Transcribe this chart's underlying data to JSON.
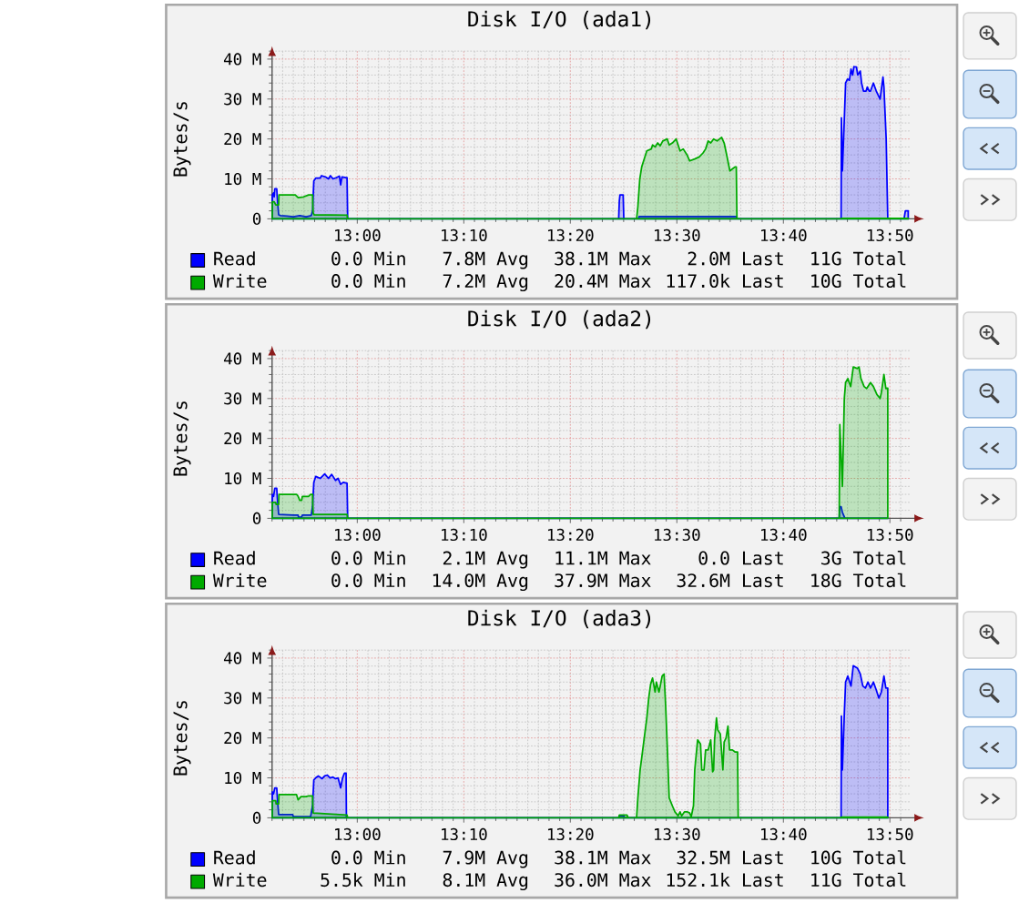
{
  "chart_data": [
    {
      "type": "area",
      "title": "Disk I/O (ada1)",
      "ylabel": "Bytes/s",
      "xlim": [
        12.8667,
        13.8667
      ],
      "ylim": [
        0,
        42000000
      ],
      "xticks": [
        {
          "value": 13,
          "label": "13:00"
        },
        {
          "value": 13.1667,
          "label": "13:10"
        },
        {
          "value": 13.3333,
          "label": "13:20"
        },
        {
          "value": 13.5,
          "label": "13:30"
        },
        {
          "value": 13.6667,
          "label": "13:40"
        },
        {
          "value": 13.8333,
          "label": "13:50"
        }
      ],
      "yticks": [
        0,
        {
          "value": 10000000,
          "label": "10 M"
        },
        {
          "value": 20000000,
          "label": "20 M"
        },
        {
          "value": 30000000,
          "label": "30 M"
        },
        {
          "value": 40000000,
          "label": "40 M"
        }
      ],
      "grid": true,
      "legend": "bottom",
      "series": [
        {
          "name": "Read",
          "color": "#0000ff",
          "x": [
            12.867,
            12.869,
            12.87,
            12.871,
            12.874,
            12.875,
            12.877,
            12.88,
            12.89,
            12.9,
            12.91,
            12.92,
            12.928,
            12.93,
            12.932,
            12.935,
            12.942,
            12.944,
            12.95,
            12.955,
            12.958,
            12.962,
            12.967,
            12.972,
            12.974,
            12.976,
            12.982,
            12.984,
            12.985,
            13.409,
            13.41,
            13.411,
            13.416,
            13.417,
            13.44,
            13.441,
            13.593,
            13.594,
            13.757,
            13.7575,
            13.759,
            13.762,
            13.764,
            13.767,
            13.77,
            13.7725,
            13.775,
            13.777,
            13.781,
            13.783,
            13.787,
            13.789,
            13.792,
            13.796,
            13.798,
            13.801,
            13.803,
            13.8075,
            13.812,
            13.818,
            13.8225,
            13.824,
            13.8275,
            13.83,
            13.8555,
            13.8575,
            13.862
          ],
          "values": [
            6000000.0,
            6500000.0,
            5500000.0,
            7500000.0,
            7500000.0,
            5000000.0,
            1000000.0,
            800000.0,
            700000.0,
            500000.0,
            800000.0,
            500000.0,
            800000.0,
            2000000.0,
            9500000.0,
            10200000.0,
            10200000.0,
            10800000.0,
            10500000.0,
            10000000.0,
            10800000.0,
            10000000.0,
            10300000.0,
            10700000.0,
            8500000.0,
            10500000.0,
            10300000.0,
            10300000.0,
            0,
            0,
            4500000.0,
            6000000.0,
            6000000.0,
            0,
            0,
            600000.0,
            600000.0,
            0,
            0,
            25300000.0,
            12000000.0,
            25000000.0,
            34000000.0,
            35000000.0,
            34700000.0,
            37500000.0,
            36000000.0,
            38100000.0,
            38000000.0,
            36000000.0,
            37000000.0,
            34000000.0,
            32000000.0,
            32000000.0,
            33000000.0,
            32000000.0,
            32000000.0,
            34000000.0,
            32000000.0,
            30000000.0,
            35500000.0,
            33000000.0,
            20000000.0,
            0,
            0,
            2000000.0,
            2000000.0
          ]
        },
        {
          "name": "Write",
          "color": "#00aa00",
          "x": [
            12.867,
            12.87,
            12.8725,
            12.877,
            12.8775,
            12.903,
            12.9075,
            12.916,
            12.924,
            12.93,
            12.931,
            12.9325,
            12.984,
            12.985,
            13.437,
            13.439,
            13.442,
            13.445,
            13.449,
            13.453,
            13.46,
            13.462,
            13.466,
            13.47,
            13.474,
            13.478,
            13.485,
            13.488,
            13.493,
            13.499,
            13.505,
            13.51,
            13.516,
            13.52,
            13.528,
            13.535,
            13.541,
            13.545,
            13.549,
            13.553,
            13.5575,
            13.563,
            13.57,
            13.574,
            13.578,
            13.583,
            13.587,
            13.591,
            13.593,
            13.594,
            13.757,
            13.7575,
            13.862
          ],
          "values": [
            4300000.0,
            4300000.0,
            3500000.0,
            3500000.0,
            6000000.0,
            6000000.0,
            5300000.0,
            5500000.0,
            6000000.0,
            6000000.0,
            1500000.0,
            1000000.0,
            900000.0,
            0,
            0,
            3000000.0,
            10000000.0,
            13000000.0,
            15000000.0,
            17000000.0,
            17500000.0,
            18500000.0,
            18000000.0,
            19000000.0,
            18300000.0,
            19500000.0,
            20000000.0,
            18500000.0,
            19000000.0,
            20000000.0,
            17000000.0,
            17500000.0,
            16000000.0,
            14500000.0,
            15000000.0,
            15500000.0,
            16500000.0,
            17500000.0,
            19500000.0,
            19000000.0,
            20000000.0,
            19500000.0,
            20400000.0,
            19000000.0,
            16000000.0,
            12000000.0,
            12500000.0,
            13000000.0,
            13000000.0,
            0,
            0,
            100000.0,
            100000.0
          ]
        }
      ],
      "annotations": [
        "0.0 Min",
        "7.8M Avg",
        "38.1M Max",
        "2.0M Last",
        "11G Total",
        "0.0 Min",
        "7.2M Avg",
        "20.4M Max",
        "117.0k Last",
        "10G Total"
      ]
    },
    {
      "type": "area",
      "title": "Disk I/O (ada2)",
      "ylabel": "Bytes/s",
      "xlim": [
        12.8667,
        13.8667
      ],
      "ylim": [
        0,
        42000000
      ],
      "xticks": [
        {
          "value": 13,
          "label": "13:00"
        },
        {
          "value": 13.1667,
          "label": "13:10"
        },
        {
          "value": 13.3333,
          "label": "13:20"
        },
        {
          "value": 13.5,
          "label": "13:30"
        },
        {
          "value": 13.6667,
          "label": "13:40"
        },
        {
          "value": 13.8333,
          "label": "13:50"
        }
      ],
      "yticks": [
        0,
        {
          "value": 10000000,
          "label": "10 M"
        },
        {
          "value": 20000000,
          "label": "20 M"
        },
        {
          "value": 30000000,
          "label": "30 M"
        },
        {
          "value": 40000000,
          "label": "40 M"
        }
      ],
      "grid": true,
      "legend": "bottom",
      "series": [
        {
          "name": "Read",
          "color": "#0000ff",
          "x": [
            12.867,
            12.869,
            12.871,
            12.874,
            12.875,
            12.877,
            12.9,
            12.9075,
            12.908,
            12.913,
            12.914,
            12.928,
            12.93,
            12.932,
            12.935,
            12.942,
            12.949,
            12.955,
            12.96,
            12.966,
            12.97,
            12.974,
            12.978,
            12.984,
            12.985,
            13.754,
            13.755,
            13.757,
            13.759,
            13.763,
            13.83
          ],
          "values": [
            6000000.0,
            5500000.0,
            7500000.0,
            7500000.0,
            5000000.0,
            1000000.0,
            800000.0,
            800000.0,
            300000.0,
            300000.0,
            800000.0,
            800000.0,
            3000000.0,
            9000000.0,
            10500000.0,
            10000000.0,
            11100000.0,
            10000000.0,
            11000000.0,
            9500000.0,
            10000000.0,
            8500000.0,
            9000000.0,
            8800000.0,
            0,
            0,
            2900000.0,
            2900000.0,
            1500000.0,
            0,
            0
          ]
        },
        {
          "name": "Write",
          "color": "#00aa00",
          "x": [
            12.867,
            12.8725,
            12.873,
            12.877,
            12.8775,
            12.905,
            12.9075,
            12.91,
            12.913,
            12.914,
            12.924,
            12.927,
            12.93,
            12.931,
            12.984,
            12.985,
            13.754,
            13.755,
            13.759,
            13.762,
            13.764,
            13.7675,
            13.772,
            13.776,
            13.7825,
            13.785,
            13.788,
            13.793,
            13.797,
            13.803,
            13.8075,
            13.813,
            13.818,
            13.82,
            13.824,
            13.827,
            13.83
          ],
          "values": [
            4000000.0,
            4000000.0,
            3500000.0,
            3500000.0,
            6000000.0,
            6000000.0,
            5500000.0,
            4500000.0,
            4500000.0,
            5500000.0,
            5500000.0,
            6000000.0,
            6000000.0,
            1000000.0,
            1000000.0,
            0,
            0,
            23500000.0,
            8000000.0,
            30000000.0,
            34000000.0,
            35000000.0,
            33000000.0,
            37900000.0,
            37500000.0,
            37900000.0,
            35000000.0,
            33000000.0,
            32500000.0,
            34000000.0,
            33000000.0,
            31000000.0,
            30000000.0,
            31500000.0,
            36000000.0,
            32500000.0,
            32600000.0
          ]
        }
      ],
      "annotations": [
        "0.0 Min",
        "2.1M Avg",
        "11.1M Max",
        "0.0 Last",
        "3G Total",
        "0.0 Min",
        "14.0M Avg",
        "37.9M Max",
        "32.6M Last",
        "18G Total"
      ]
    },
    {
      "type": "area",
      "title": "Disk I/O (ada3)",
      "ylabel": "Bytes/s",
      "xlim": [
        12.8667,
        13.8667
      ],
      "ylim": [
        0,
        42000000
      ],
      "xticks": [
        {
          "value": 13,
          "label": "13:00"
        },
        {
          "value": 13.1667,
          "label": "13:10"
        },
        {
          "value": 13.3333,
          "label": "13:20"
        },
        {
          "value": 13.5,
          "label": "13:30"
        },
        {
          "value": 13.6667,
          "label": "13:40"
        },
        {
          "value": 13.8333,
          "label": "13:50"
        }
      ],
      "yticks": [
        0,
        {
          "value": 10000000,
          "label": "10 M"
        },
        {
          "value": 20000000,
          "label": "20 M"
        },
        {
          "value": 30000000,
          "label": "30 M"
        },
        {
          "value": 40000000,
          "label": "40 M"
        }
      ],
      "grid": true,
      "legend": "bottom",
      "series": [
        {
          "name": "Read",
          "color": "#0000ff",
          "x": [
            12.867,
            12.869,
            12.871,
            12.874,
            12.875,
            12.877,
            12.899,
            12.9,
            12.927,
            12.93,
            12.932,
            12.935,
            12.939,
            12.945,
            12.949,
            12.953,
            12.9575,
            12.962,
            12.966,
            12.97,
            12.974,
            12.977,
            12.98,
            12.9825,
            12.983,
            13.409,
            13.41,
            13.417,
            13.418,
            13.757,
            13.7575,
            13.759,
            13.762,
            13.764,
            13.7675,
            13.7725,
            13.776,
            13.7825,
            13.787,
            13.791,
            13.795,
            13.799,
            13.803,
            13.8075,
            13.812,
            13.816,
            13.82,
            13.824,
            13.827,
            13.83
          ],
          "values": [
            6500000.0,
            6000000.0,
            7500000.0,
            7500000.0,
            5000000.0,
            800000.0,
            800000.0,
            300000.0,
            300000.0,
            3000000.0,
            9500000.0,
            10000000.0,
            10500000.0,
            9800000.0,
            10500000.0,
            10700000.0,
            10000000.0,
            10200000.0,
            9800000.0,
            10000000.0,
            7500000.0,
            10000000.0,
            11200000.0,
            11200000.0,
            0,
            0,
            500000.0,
            500000.0,
            0,
            0,
            25500000.0,
            12000000.0,
            26000000.0,
            34000000.0,
            35500000.0,
            33000000.0,
            38100000.0,
            37500000.0,
            36000000.0,
            33000000.0,
            32500000.0,
            34000000.0,
            32500000.0,
            34000000.0,
            32000000.0,
            30000000.0,
            31500000.0,
            35500000.0,
            32500000.0,
            32500000.0
          ]
        },
        {
          "name": "Write",
          "color": "#00aa00",
          "x": [
            12.867,
            12.8725,
            12.873,
            12.877,
            12.8775,
            12.905,
            12.9075,
            12.912,
            12.92,
            12.924,
            12.93,
            12.931,
            12.984,
            12.985,
            13.409,
            13.41,
            13.422,
            13.424,
            13.437,
            13.439,
            13.4425,
            13.445,
            13.449,
            13.453,
            13.456,
            13.459,
            13.462,
            13.466,
            13.468,
            13.472,
            13.474,
            13.477,
            13.48,
            13.4825,
            13.485,
            13.488,
            13.493,
            13.497,
            13.502,
            13.505,
            13.5075,
            13.512,
            13.516,
            13.52,
            13.5225,
            13.526,
            13.528,
            13.531,
            13.5325,
            13.537,
            13.539,
            13.5425,
            13.545,
            13.549,
            13.553,
            13.556,
            13.5575,
            13.559,
            13.562,
            13.564,
            13.568,
            13.572,
            13.574,
            13.577,
            13.58,
            13.5825,
            13.587,
            13.591,
            13.595,
            13.596,
            13.757,
            13.7575,
            13.83
          ],
          "values": [
            4300000.0,
            4300000.0,
            3500000.0,
            3500000.0,
            5800000.0,
            5800000.0,
            4500000.0,
            5300000.0,
            5300000.0,
            5500000.0,
            5500000.0,
            1200000.0,
            700000.0,
            0,
            0,
            700000.0,
            700000.0,
            0,
            0,
            5000000.0,
            12000000.0,
            15000000.0,
            20000000.0,
            25000000.0,
            30000000.0,
            33500000.0,
            35000000.0,
            31500000.0,
            34000000.0,
            31500000.0,
            33000000.0,
            35500000.0,
            36000000.0,
            28000000.0,
            18000000.0,
            5000000.0,
            3000000.0,
            1500000.0,
            500000.0,
            1500000.0,
            500000.0,
            1500000.0,
            1500000.0,
            1200000.0,
            300000.0,
            3000000.0,
            12000000.0,
            17000000.0,
            19500000.0,
            18500000.0,
            12000000.0,
            12000000.0,
            17000000.0,
            17000000.0,
            19500000.0,
            11500000.0,
            12000000.0,
            19500000.0,
            25000000.0,
            22000000.0,
            21000000.0,
            12000000.0,
            19000000.0,
            20000000.0,
            23000000.0,
            17000000.0,
            17000000.0,
            16500000.0,
            16500000.0,
            0,
            0,
            200000.0,
            200000.0
          ]
        }
      ],
      "annotations": [
        "0.0 Min",
        "7.9M Avg",
        "38.1M Max",
        "32.5M Last",
        "10G Total",
        "5.5k Min",
        "8.1M Avg",
        "36.0M Max",
        "152.1k Last",
        "11G Total"
      ]
    }
  ]
}
